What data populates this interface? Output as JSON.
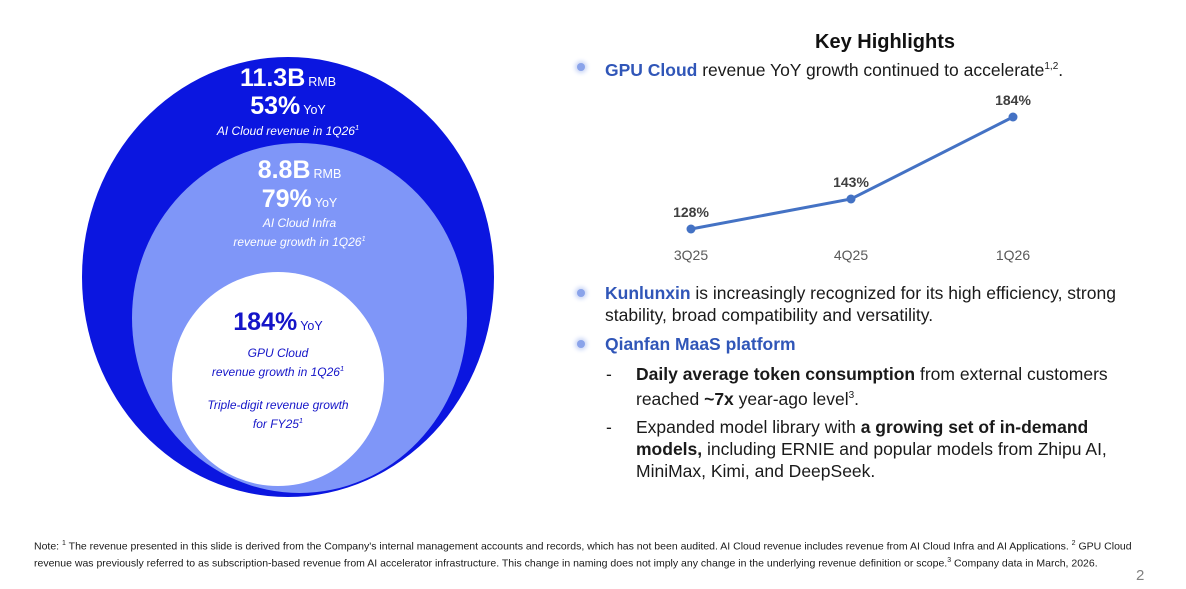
{
  "circles": {
    "outer": {
      "value": "11.3B",
      "unit": "RMB",
      "growth": "53%",
      "growth_unit": "YoY",
      "desc": "AI Cloud revenue in 1Q26",
      "sup": "1"
    },
    "mid": {
      "value": "8.8B",
      "unit": "RMB",
      "growth": "79%",
      "growth_unit": "YoY",
      "desc_line1": "AI Cloud Infra",
      "desc_line2": "revenue growth in 1Q26",
      "sup": "1"
    },
    "inner": {
      "growth": "184%",
      "growth_unit": "YoY",
      "desc_line1": "GPU Cloud",
      "desc_line2": "revenue growth in 1Q26",
      "sup": "1",
      "desc2_line1": "Triple-digit revenue growth",
      "desc2_line2": "for FY25",
      "sup2": "1"
    }
  },
  "highlights": {
    "title": "Key Highlights",
    "gpu": {
      "name": "GPU Cloud",
      "text": " revenue YoY growth continued to accelerate",
      "sup": "1,2",
      "end": "."
    },
    "kunlunxin": {
      "name": "Kunlunxin",
      "line1": " is increasingly recognized for its high efficiency, strong",
      "line2": "stability, broad compatibility and versatility."
    },
    "qianfan": {
      "name": "Qianfan MaaS platform",
      "dash": "-",
      "item1": {
        "bold": "Daily average token consumption",
        "rest": " from external customers",
        "line2_pre": "reached ",
        "line2_bold": "~7x",
        "line2_rest": " year-ago level",
        "sup": "3",
        "end": "."
      },
      "item2": {
        "pre": "Expanded model library with ",
        "bold1": "a growing set of in-demand",
        "bold2": "models,",
        "rest2": " including ERNIE and popular models from Zhipu AI,",
        "line3": "MiniMax, Kimi, and DeepSeek."
      }
    }
  },
  "chart_data": {
    "type": "line",
    "categories": [
      "3Q25",
      "4Q25",
      "1Q26"
    ],
    "values": [
      128,
      143,
      184
    ],
    "labels": [
      "128%",
      "143%",
      "184%"
    ],
    "ylim": [
      100,
      190
    ],
    "color": "#4472c4"
  },
  "footnote": {
    "prefix": "Note: ",
    "s1": "1",
    "t1": " The revenue presented in this slide is derived from the Company's internal management accounts and records, which has not been audited. AI Cloud revenue includes revenue from AI Cloud Infra and AI Applications. ",
    "s2": "2",
    "t2": " GPU Cloud revenue was previously referred to as subscription-based revenue from AI accelerator infrastructure. This change in naming does not imply any change in the underlying revenue definition or scope.",
    "s3": "3",
    "t3": " Company data in March, 2026."
  },
  "page_number": "2"
}
